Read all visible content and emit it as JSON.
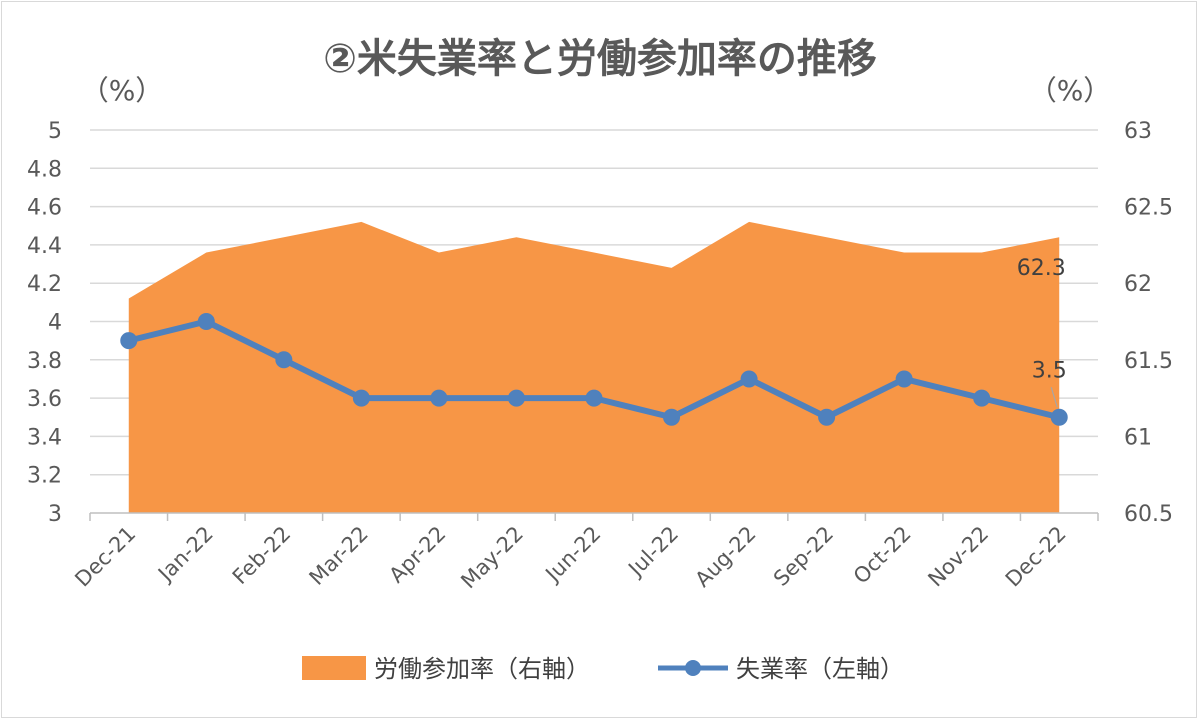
{
  "chart_data": {
    "type": "line",
    "title": "②米失業率と労働参加率の推移",
    "y_left_unit": "（%）",
    "y_right_unit": "（%）",
    "categories": [
      "Dec-21",
      "Jan-22",
      "Feb-22",
      "Mar-22",
      "Apr-22",
      "May-22",
      "Jun-22",
      "Jul-22",
      "Aug-22",
      "Sep-22",
      "Oct-22",
      "Nov-22",
      "Dec-22"
    ],
    "y_left_ticks": [
      "3",
      "3.2",
      "3.4",
      "3.6",
      "3.8",
      "4",
      "4.2",
      "4.4",
      "4.6",
      "4.8",
      "5"
    ],
    "y_right_ticks": [
      "60.5",
      "61",
      "61.5",
      "62",
      "62.5",
      "63"
    ],
    "ylim_left": [
      3,
      5
    ],
    "ylim_right": [
      60.5,
      63
    ],
    "grid": true,
    "legend_position": "bottom",
    "series": [
      {
        "name": "労働参加率（右軸）",
        "type": "area",
        "axis": "right",
        "color": "#f79646",
        "values": [
          61.9,
          62.2,
          62.3,
          62.4,
          62.2,
          62.3,
          62.2,
          62.1,
          62.4,
          62.3,
          62.2,
          62.2,
          62.3
        ],
        "last_label": "62.3"
      },
      {
        "name": "失業率（左軸）",
        "type": "line",
        "axis": "left",
        "color": "#4f81bd",
        "values": [
          3.9,
          4.0,
          3.8,
          3.6,
          3.6,
          3.6,
          3.6,
          3.5,
          3.7,
          3.5,
          3.7,
          3.6,
          3.5
        ],
        "last_label": "3.5"
      }
    ]
  }
}
